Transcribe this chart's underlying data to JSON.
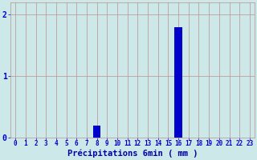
{
  "categories": [
    0,
    1,
    2,
    3,
    4,
    5,
    6,
    7,
    8,
    9,
    10,
    11,
    12,
    13,
    14,
    15,
    16,
    17,
    18,
    19,
    20,
    21,
    22,
    23
  ],
  "values": [
    0,
    0,
    0,
    0,
    0,
    0,
    0,
    0,
    0.2,
    0,
    0,
    0,
    0,
    0,
    0,
    0,
    1.8,
    0,
    0,
    0,
    0,
    0,
    0,
    0
  ],
  "bar_color": "#0000cc",
  "background_color": "#cce8e8",
  "grid_color": "#c09090",
  "xlabel": "Précipitations 6min ( mm )",
  "xlabel_color": "#0000aa",
  "xlabel_fontsize": 7.5,
  "tick_color": "#0000cc",
  "tick_fontsize": 5.5,
  "ytick_fontsize": 7,
  "ylim": [
    0,
    2.2
  ],
  "yticks": [
    0,
    1,
    2
  ],
  "bar_width": 0.75
}
